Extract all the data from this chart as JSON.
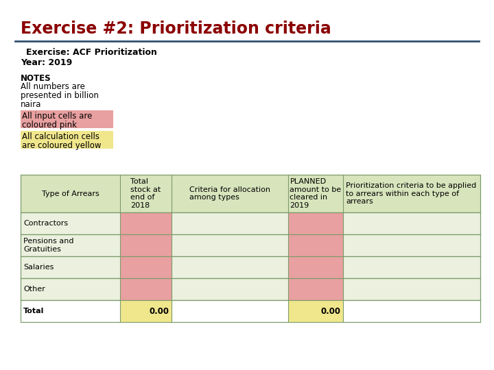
{
  "title": "Exercise #2: Prioritization criteria",
  "title_color": "#8B0000",
  "subtitle1": "Exercise: ACF Prioritization",
  "subtitle2": "Year: 2019",
  "notes_label": "NOTES",
  "notes_lines": [
    "All numbers are",
    "presented in billion",
    "naira"
  ],
  "note_pink_text": [
    "All input cells are",
    "coloured pink"
  ],
  "note_yellow_text": [
    "All calculation cells",
    "are coloured yellow"
  ],
  "pink_color": "#E8A0A0",
  "yellow_color": "#F0E68C",
  "light_green_header": "#D8E4BC",
  "light_green_row": "#EBF1DE",
  "table_border_color": "#7B9B6B",
  "col_headers": [
    "Type of Arrears",
    "Total\nstock at\nend of\n2018",
    "Criteria for allocation\namong types",
    "PLANNED\namount to be\ncleared in\n2019",
    "Prioritization criteria to be applied\nto arrears within each type of\narrears"
  ],
  "row_labels": [
    "Contractors",
    "Pensions and\nGratuities",
    "Salaries",
    "Other",
    "Total"
  ],
  "background_color": "#FFFFFF",
  "header_line_color": "#2F4F6F",
  "total_value": "0.00"
}
